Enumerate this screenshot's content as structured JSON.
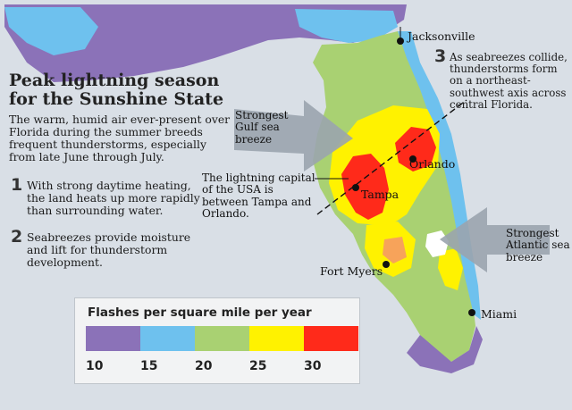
{
  "title": "Peak lightning season for the Sunshine State",
  "intro": "The warm, humid air ever-present over Florida during the summer breeds frequent thunderstorms, especially from late June through July.",
  "points": [
    {
      "num": "1",
      "text": "With strong daytime heating, the land heats up more rapidly than surrounding water."
    },
    {
      "num": "2",
      "text": "Seabreezes provide moisture and lift for thunderstorm development."
    },
    {
      "num": "3",
      "text": "As seabreezes collide, thunderstorms form on a northeast-southwest axis across central Florida."
    }
  ],
  "callouts": {
    "gulf": "Strongest Gulf sea breeze",
    "atlantic": "Strongest Atlantic sea breeze",
    "capital": "The lightning capital of the USA is between Tampa and Orlando."
  },
  "cities": [
    "Jacksonville",
    "Orlando",
    "Tampa",
    "Fort Myers",
    "Miami"
  ],
  "legend": {
    "title": "Flashes per square mile per year",
    "bins": [
      {
        "label": "10",
        "color": "#8b72b8"
      },
      {
        "label": "15",
        "color": "#6ec1ee"
      },
      {
        "label": "20",
        "color": "#a9d172"
      },
      {
        "label": "25",
        "color": "#fff200"
      },
      {
        "label": "30",
        "color": "#ff2a1a"
      }
    ]
  },
  "colors": {
    "purple": "#8b72b8",
    "blue": "#6ec1ee",
    "green": "#a9d172",
    "yellow": "#fff200",
    "orange": "#f7a35a",
    "red": "#ff2a1a",
    "water": "#d9dfe6",
    "arrow": "#9aa4ae"
  }
}
